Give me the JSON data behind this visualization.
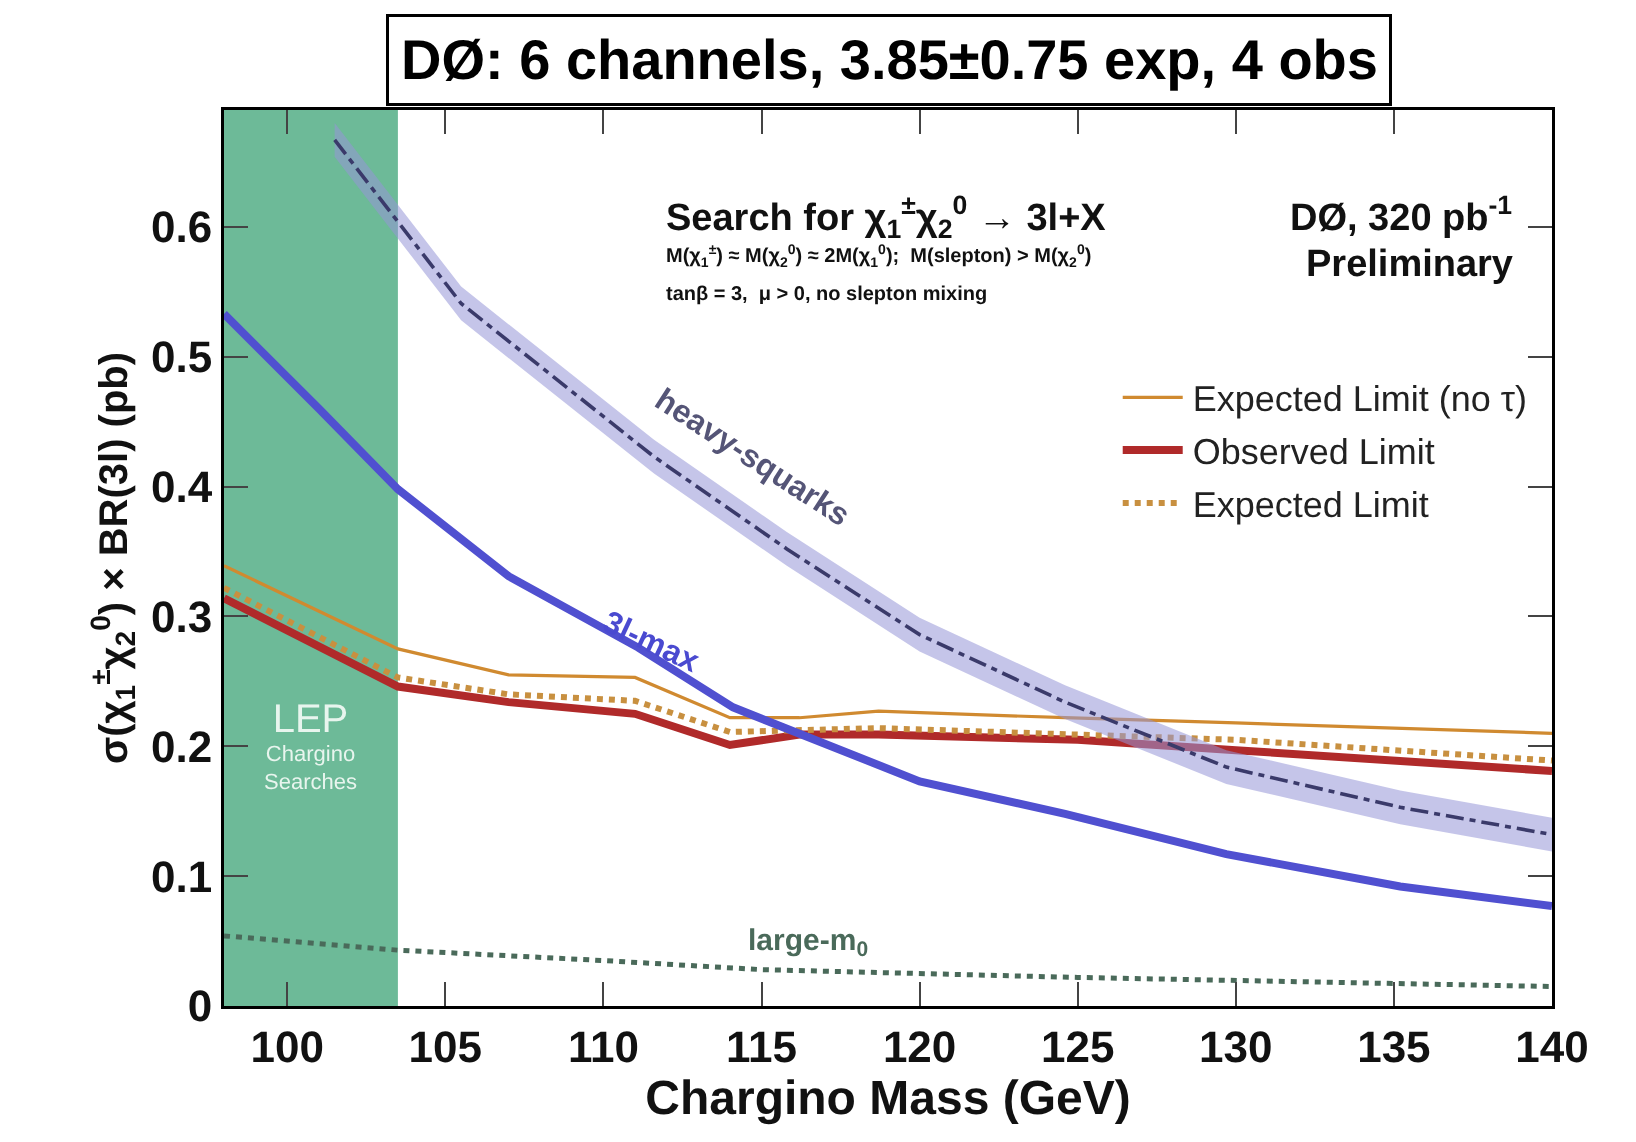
{
  "chart_data": {
    "type": "line",
    "title": "DØ: 6 channels, 3.85±0.75 exp, 4 obs",
    "xlabel": "Chargino Mass (GeV)",
    "ylabel": "σ(χ$_{1}$$^{±}$χ$_{2}$$^{0}$) × BR(3l) (pb)",
    "xlim": [
      98,
      140
    ],
    "ylim": [
      0,
      0.69
    ],
    "xticks": [
      100,
      105,
      110,
      115,
      120,
      125,
      130,
      135,
      140
    ],
    "yticks": [
      0,
      0.1,
      0.2,
      0.3,
      0.4,
      0.5,
      0.6
    ],
    "grid": false,
    "legend": "top right",
    "marker": "none",
    "bands": [
      {
        "axis": "x",
        "from": 98,
        "to": 103.5,
        "label": "LEP Chargino Searches",
        "color": "#6dba98"
      }
    ],
    "series": [
      {
        "name": "Expected Limit (no τ)",
        "color": "#d08a30",
        "line_style": "solid",
        "x": [
          98,
          103.5,
          107,
          111,
          114,
          116.2,
          118.7,
          124.6,
          130,
          140
        ],
        "values": [
          0.339,
          0.275,
          0.255,
          0.253,
          0.222,
          0.222,
          0.227,
          0.222,
          0.218,
          0.21
        ]
      },
      {
        "name": "Observed Limit",
        "color": "#b02a2a",
        "line_style": "solid",
        "x": [
          98,
          103.5,
          107,
          111,
          114,
          116.2,
          118.7,
          125,
          130,
          140
        ],
        "values": [
          0.314,
          0.246,
          0.234,
          0.225,
          0.201,
          0.209,
          0.209,
          0.205,
          0.197,
          0.181
        ]
      },
      {
        "name": "Expected Limit",
        "color": "#c89040",
        "line_style": "dotted",
        "x": [
          98,
          103.5,
          107,
          111,
          114,
          118.7,
          125,
          130,
          140
        ],
        "values": [
          0.322,
          0.253,
          0.24,
          0.235,
          0.211,
          0.214,
          0.209,
          0.205,
          0.189
        ]
      },
      {
        "color": "#5050d0",
        "line_style": "solid",
        "x": [
          98,
          101,
          103.5,
          107,
          111.1,
          114.1,
          120,
          124.6,
          129.7,
          135.2,
          140
        ],
        "values": [
          0.533,
          0.46,
          0.398,
          0.331,
          0.276,
          0.23,
          0.173,
          0.148,
          0.117,
          0.092,
          0.077
        ]
      },
      {
        "color": "#3a3a6a",
        "line_style": "dashed",
        "x": [
          101.5,
          105.5,
          111.6,
          115.8,
          120,
          124.6,
          129.7,
          135.2,
          140
        ],
        "values": [
          0.667,
          0.541,
          0.423,
          0.352,
          0.286,
          0.234,
          0.184,
          0.153,
          0.132
        ],
        "lower": [
          0.654,
          0.528,
          0.41,
          0.339,
          0.273,
          0.221,
          0.171,
          0.14,
          0.119
        ],
        "upper": [
          0.68,
          0.554,
          0.436,
          0.365,
          0.299,
          0.247,
          0.197,
          0.166,
          0.145
        ]
      },
      {
        "color": "#4a6a5a",
        "line_style": "dotted",
        "x": [
          98,
          103.5,
          110,
          115,
          125,
          140
        ],
        "values": [
          0.054,
          0.043,
          0.035,
          0.028,
          0.022,
          0.015
        ]
      }
    ],
    "annotations": [
      "Search for χ$_{1}$$^{±}$χ$_{2}$$^{0}$ → 3l+X",
      "M(χ$_{1}$$^{±}$) ≈ M(χ$_{2}$$^{0}$) ≈ 2M(χ$_{1}$$^{0}$);  M(slepton) > M(χ$_{2}$$^{0}$)",
      "tanβ = 3,  μ > 0, no slepton mixing",
      "DØ, 320 pb$^{-1}$",
      "Preliminary",
      {
        "text": "heavy-squarks",
        "x": 113.7,
        "y": 0.388
      },
      {
        "text": "3l-max",
        "x": 111.5,
        "y": 0.28
      },
      {
        "text": "large-m$_{0}$",
        "x": 116.5,
        "y": 0.027
      }
    ]
  }
}
